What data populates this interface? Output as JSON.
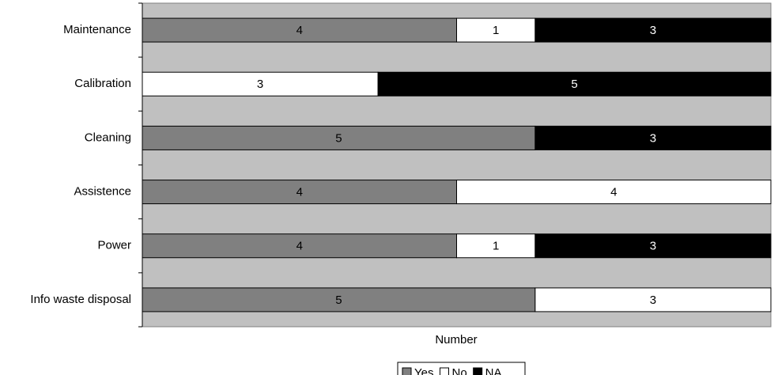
{
  "chart_data": {
    "type": "stacked-barh",
    "categories": [
      "Maintenance",
      "Calibration",
      "Cleaning",
      "Assistence",
      "Power",
      "Info waste disposal"
    ],
    "series": [
      {
        "name": "Yes",
        "color": "#808080",
        "values": [
          4,
          null,
          5,
          4,
          4,
          5
        ]
      },
      {
        "name": "No",
        "color": "#ffffff",
        "values": [
          1,
          3,
          null,
          4,
          1,
          3
        ]
      },
      {
        "name": "NA",
        "color": "#000000",
        "values": [
          3,
          5,
          3,
          null,
          3,
          null
        ]
      }
    ],
    "xlabel": "Number",
    "xlim": [
      0,
      8
    ],
    "plot_background": "#c0c0c0",
    "legend": "bottom"
  }
}
